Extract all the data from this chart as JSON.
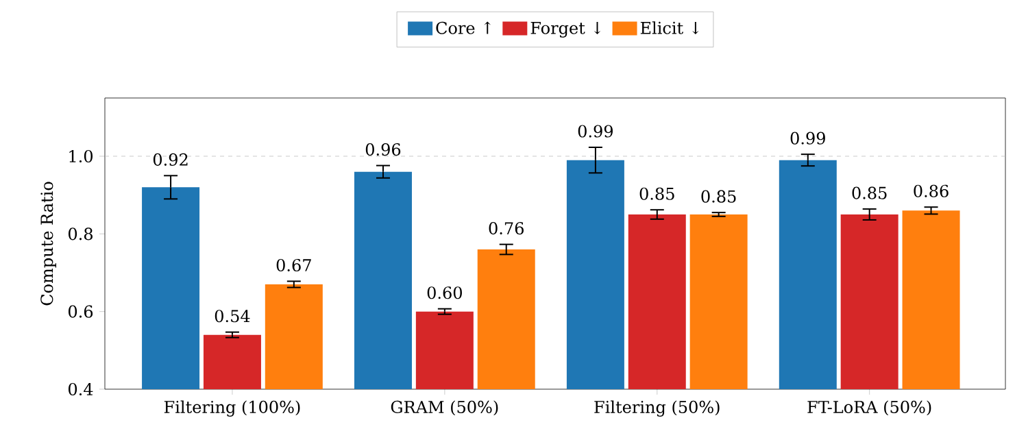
{
  "chart_data": {
    "type": "bar",
    "ylabel": "Compute Ratio",
    "categories": [
      "Filtering (100%)",
      "GRAM (50%)",
      "Filtering (50%)",
      "FT-LoRA (50%)"
    ],
    "series": [
      {
        "name": "Core ↑",
        "color": "#1f77b4",
        "values": [
          0.92,
          0.96,
          0.99,
          0.99
        ],
        "errors": [
          0.03,
          0.016,
          0.033,
          0.015
        ],
        "value_labels": [
          "0.92",
          "0.96",
          "0.99",
          "0.99"
        ]
      },
      {
        "name": "Forget ↓",
        "color": "#d62728",
        "values": [
          0.54,
          0.6,
          0.85,
          0.85
        ],
        "errors": [
          0.007,
          0.007,
          0.012,
          0.014
        ],
        "value_labels": [
          "0.54",
          "0.60",
          "0.85",
          "0.85"
        ]
      },
      {
        "name": "Elicit ↓",
        "color": "#ff7f0e",
        "values": [
          0.67,
          0.76,
          0.85,
          0.86
        ],
        "errors": [
          0.008,
          0.013,
          0.005,
          0.009
        ],
        "value_labels": [
          "0.67",
          "0.76",
          "0.85",
          "0.86"
        ]
      }
    ],
    "ylim": [
      0.4,
      1.15
    ],
    "yticks": [
      {
        "value": 0.4,
        "label": "0.4"
      },
      {
        "value": 0.6,
        "label": "0.6"
      },
      {
        "value": 0.8,
        "label": "0.8"
      },
      {
        "value": 1.0,
        "label": "1.0"
      }
    ],
    "ref_lines": [
      {
        "axis": "y",
        "value": 1.0,
        "color": "#bbbbbb",
        "line_style": "dashed"
      }
    ],
    "grid": false,
    "legend": "top"
  }
}
